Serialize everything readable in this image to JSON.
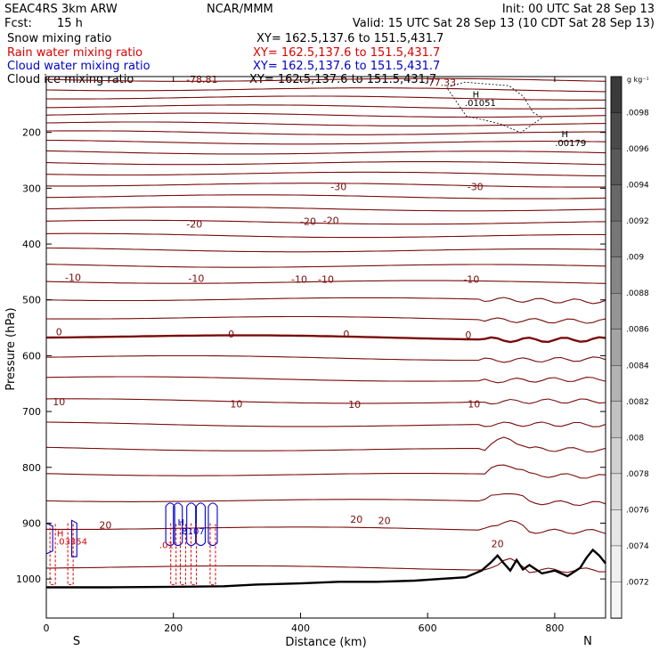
{
  "header": {
    "model": "SEAC4RS   3km ARW",
    "org": "NCAR/MMM",
    "init": "Init: 00 UTC Sat 28 Sep 13",
    "fcst_label": "Fcst:",
    "fcst_value": "15 h",
    "valid": "Valid: 15 UTC Sat 28 Sep 13 (10 CDT Sat 28 Sep 13)"
  },
  "fields": [
    {
      "name": "Snow mixing ratio",
      "xy": "XY= 162.5,137.6 to 151.5,431.7",
      "color": "#000000"
    },
    {
      "name": "Rain water mixing ratio",
      "xy": "XY= 162.5,137.6 to 151.5,431.7",
      "color": "#dd0000"
    },
    {
      "name": "Cloud water mixing ratio",
      "xy": "XY= 162.5,137.6 to 151.5,431.7",
      "color": "#0000cc"
    },
    {
      "name": "Cloud ice mixing ratio",
      "xy": "XY= 162.5,137.6 to 151.5,431.7",
      "color": "#000000"
    }
  ],
  "colorbar": {
    "unit": "g kg⁻¹",
    "labels": [
      ".0098",
      ".0096",
      ".0094",
      ".0092",
      ".009",
      ".0088",
      ".0086",
      ".0084",
      ".0082",
      ".008",
      ".0078",
      ".0076",
      ".0074",
      ".0072"
    ],
    "colors": [
      "#3a3a3a",
      "#4a4a4a",
      "#595959",
      "#686868",
      "#777777",
      "#868686",
      "#959595",
      "#a4a4a4",
      "#b3b3b3",
      "#c2c2c2",
      "#d0d0d0",
      "#dcdcdc",
      "#e6e6e6",
      "#efefef",
      "#f6f6f6"
    ]
  },
  "chart_data": {
    "type": "cross-section contour",
    "xlabel": "Distance (km)",
    "ylabel": "Pressure (hPa)",
    "xlim": [
      0,
      880
    ],
    "ylim": [
      1070,
      100
    ],
    "x_ticks": [
      0,
      200,
      400,
      600,
      800
    ],
    "y_ticks": [
      200,
      300,
      400,
      500,
      600,
      700,
      800,
      900,
      1000
    ],
    "x_end_labels": {
      "left": "S",
      "right": "N"
    },
    "temperature_isotherm_color": "#7a0b0b",
    "isotherm_pressures": [
      105,
      122,
      137,
      153,
      168,
      184,
      200,
      217,
      235,
      254,
      273,
      293,
      314,
      336,
      360,
      384,
      410,
      438,
      467,
      498,
      531,
      565,
      602,
      640,
      680,
      722,
      766,
      811,
      858,
      908,
      978
    ],
    "zero_isotherm_pressure": 565,
    "isotherm_labels": [
      {
        "text": "-77.33",
        "x": 620,
        "p": 110
      },
      {
        "text": "-78.81",
        "x": 245,
        "p": 105
      },
      {
        "text": "-30",
        "x": 460,
        "p": 297
      },
      {
        "text": "-30",
        "x": 675,
        "p": 297
      },
      {
        "text": "-20",
        "x": 233,
        "p": 364
      },
      {
        "text": "-20",
        "x": 412,
        "p": 359
      },
      {
        "text": "-20",
        "x": 448,
        "p": 358
      },
      {
        "text": "-10",
        "x": 42,
        "p": 460
      },
      {
        "text": "-10",
        "x": 236,
        "p": 461
      },
      {
        "text": "-10",
        "x": 398,
        "p": 463
      },
      {
        "text": "-10",
        "x": 440,
        "p": 463
      },
      {
        "text": "-10",
        "x": 669,
        "p": 463
      },
      {
        "text": "0",
        "x": 20,
        "p": 557
      },
      {
        "text": "0",
        "x": 291,
        "p": 561
      },
      {
        "text": "0",
        "x": 472,
        "p": 561
      },
      {
        "text": "0",
        "x": 664,
        "p": 563
      },
      {
        "text": "10",
        "x": 20,
        "p": 682
      },
      {
        "text": "10",
        "x": 299,
        "p": 686
      },
      {
        "text": "10",
        "x": 485,
        "p": 687
      },
      {
        "text": "10",
        "x": 673,
        "p": 686
      },
      {
        "text": "20",
        "x": 93,
        "p": 903
      },
      {
        "text": "20",
        "x": 488,
        "p": 893
      },
      {
        "text": "20",
        "x": 532,
        "p": 895
      },
      {
        "text": "20",
        "x": 710,
        "p": 937
      }
    ],
    "extrema_labels": [
      {
        "text": "H",
        "x": 676,
        "p": 131,
        "color": "#000000"
      },
      {
        "text": ".01051",
        "x": 683,
        "p": 146,
        "color": "#000000"
      },
      {
        "text": "H",
        "x": 816,
        "p": 202,
        "color": "#000000"
      },
      {
        "text": ".00179",
        "x": 825,
        "p": 218,
        "color": "#000000"
      },
      {
        "text": "H",
        "x": 22,
        "p": 918,
        "color": "#dd0000"
      },
      {
        "text": ".03354",
        "x": 40,
        "p": 932,
        "color": "#dd0000"
      },
      {
        "text": "H",
        "x": 212,
        "p": 898,
        "color": "#0000cc"
      },
      {
        "text": ".8107",
        "x": 229,
        "p": 914,
        "color": "#0000cc"
      },
      {
        "text": ".01",
        "x": 189,
        "p": 938,
        "color": "#dd0000"
      }
    ],
    "cloud_water_x": [
      195,
      207,
      228,
      243,
      262
    ],
    "rain_water_x": [
      10,
      38,
      200,
      215,
      232,
      262
    ],
    "snow_cloud_ice_region": {
      "x_range": [
        630,
        780
      ],
      "p_range": [
        110,
        210
      ]
    },
    "terrain_surface": [
      [
        0,
        1015
      ],
      [
        100,
        1015
      ],
      [
        200,
        1014
      ],
      [
        280,
        1013
      ],
      [
        330,
        1010
      ],
      [
        400,
        1008
      ],
      [
        460,
        1005
      ],
      [
        520,
        1005
      ],
      [
        580,
        1003
      ],
      [
        620,
        1000
      ],
      [
        660,
        997
      ],
      [
        685,
        985
      ],
      [
        700,
        970
      ],
      [
        710,
        958
      ],
      [
        720,
        972
      ],
      [
        730,
        985
      ],
      [
        740,
        966
      ],
      [
        750,
        983
      ],
      [
        760,
        975
      ],
      [
        780,
        990
      ],
      [
        800,
        985
      ],
      [
        820,
        995
      ],
      [
        840,
        980
      ],
      [
        850,
        962
      ],
      [
        860,
        948
      ],
      [
        870,
        958
      ],
      [
        880,
        972
      ]
    ]
  }
}
